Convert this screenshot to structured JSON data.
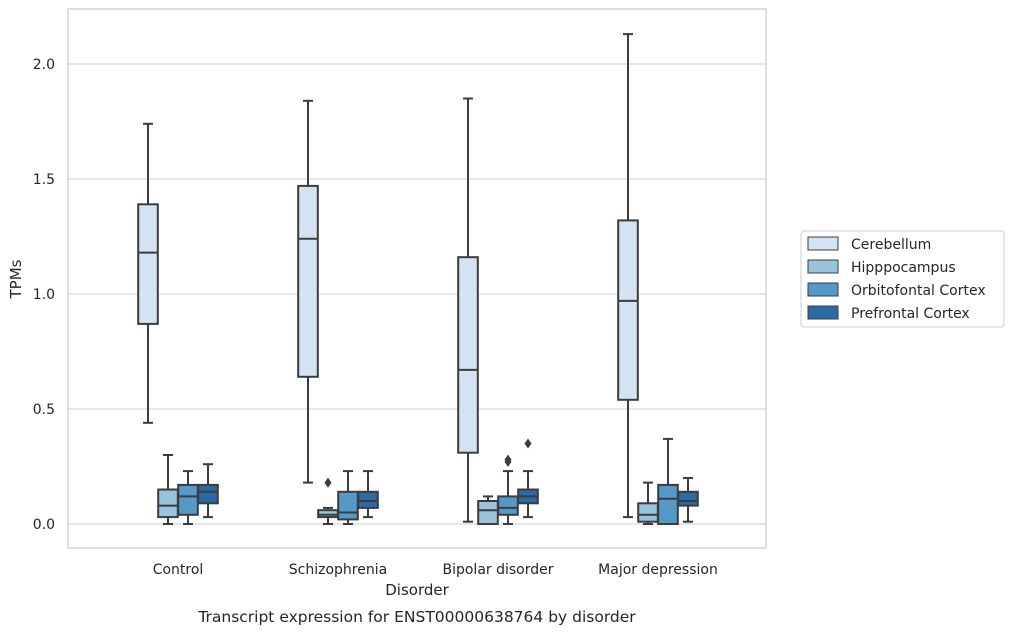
{
  "chart_data": {
    "type": "boxplot",
    "title": "Transcript expression for ENST00000638764 by disorder",
    "xlabel": "Disorder",
    "ylabel": "TPMs",
    "ylim": [
      -0.1,
      2.25
    ],
    "yticks": [
      0.0,
      0.5,
      1.0,
      1.5,
      2.0
    ],
    "ytick_labels": [
      "0.0",
      "0.5",
      "1.0",
      "1.5",
      "2.0"
    ],
    "grid": "horizontal",
    "legend_position": "right",
    "categories": [
      "Control",
      "Schizophrenia",
      "Bipolar disorder",
      "Major depression"
    ],
    "series": [
      {
        "name": "Cerebellum",
        "color": "#d4e3f1",
        "boxes": [
          {
            "whislo": 0.44,
            "q1": 0.87,
            "med": 1.18,
            "q3": 1.39,
            "whishi": 1.74,
            "fliers": []
          },
          {
            "whislo": 0.18,
            "q1": 0.64,
            "med": 1.24,
            "q3": 1.47,
            "whishi": 1.84,
            "fliers": []
          },
          {
            "whislo": 0.01,
            "q1": 0.31,
            "med": 0.67,
            "q3": 1.16,
            "whishi": 1.85,
            "fliers": []
          },
          {
            "whislo": 0.03,
            "q1": 0.54,
            "med": 0.97,
            "q3": 1.32,
            "whishi": 2.13,
            "fliers": []
          }
        ]
      },
      {
        "name": "Hipppocampus",
        "color": "#9ac4de",
        "boxes": [
          {
            "whislo": 0.0,
            "q1": 0.03,
            "med": 0.08,
            "q3": 0.15,
            "whishi": 0.3,
            "fliers": []
          },
          {
            "whislo": 0.0,
            "q1": 0.03,
            "med": 0.04,
            "q3": 0.06,
            "whishi": 0.07,
            "fliers": [
              0.18
            ]
          },
          {
            "whislo": 0.0,
            "q1": 0.0,
            "med": 0.06,
            "q3": 0.1,
            "whishi": 0.12,
            "fliers": []
          },
          {
            "whislo": 0.0,
            "q1": 0.01,
            "med": 0.04,
            "q3": 0.09,
            "whishi": 0.18,
            "fliers": []
          }
        ]
      },
      {
        "name": "Orbitofontal Cortex",
        "color": "#5599c8",
        "boxes": [
          {
            "whislo": 0.0,
            "q1": 0.04,
            "med": 0.12,
            "q3": 0.17,
            "whishi": 0.23,
            "fliers": []
          },
          {
            "whislo": 0.0,
            "q1": 0.02,
            "med": 0.05,
            "q3": 0.14,
            "whishi": 0.23,
            "fliers": []
          },
          {
            "whislo": 0.0,
            "q1": 0.04,
            "med": 0.07,
            "q3": 0.12,
            "whishi": 0.23,
            "fliers": [
              0.27,
              0.28
            ]
          },
          {
            "whislo": 0.0,
            "q1": 0.0,
            "med": 0.11,
            "q3": 0.17,
            "whishi": 0.37,
            "fliers": []
          }
        ]
      },
      {
        "name": "Prefrontal Cortex",
        "color": "#2b6aa6",
        "boxes": [
          {
            "whislo": 0.03,
            "q1": 0.09,
            "med": 0.14,
            "q3": 0.17,
            "whishi": 0.26,
            "fliers": []
          },
          {
            "whislo": 0.03,
            "q1": 0.07,
            "med": 0.1,
            "q3": 0.14,
            "whishi": 0.23,
            "fliers": []
          },
          {
            "whislo": 0.03,
            "q1": 0.09,
            "med": 0.12,
            "q3": 0.15,
            "whishi": 0.23,
            "fliers": [
              0.35
            ]
          },
          {
            "whislo": 0.01,
            "q1": 0.08,
            "med": 0.1,
            "q3": 0.14,
            "whishi": 0.2,
            "fliers": []
          }
        ]
      }
    ]
  }
}
